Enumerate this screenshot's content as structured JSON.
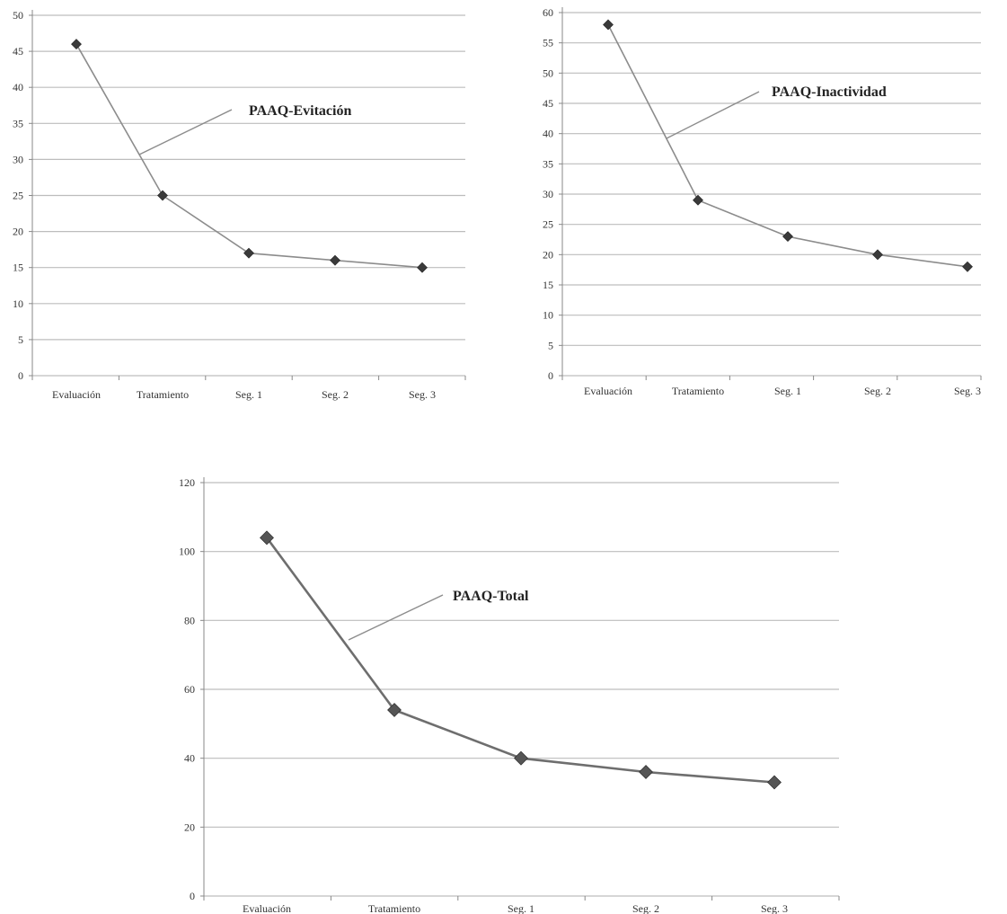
{
  "chart_data": [
    {
      "type": "line",
      "title": "",
      "xlabel": "",
      "ylabel": "",
      "categories": [
        "Evaluación",
        "Tratamiento",
        "Seg. 1",
        "Seg. 2",
        "Seg. 3"
      ],
      "series": [
        {
          "name": "PAAQ-Evitación",
          "values": [
            46,
            25,
            17,
            16,
            15
          ]
        }
      ],
      "ylim": [
        0,
        50
      ],
      "yticks": [
        0,
        5,
        10,
        15,
        20,
        25,
        30,
        35,
        40,
        45,
        50
      ],
      "annotations": [
        {
          "text": "PAAQ-Evitación",
          "series": "PAAQ-Evitación"
        }
      ],
      "grid": true,
      "colors": {
        "line": "#8c8c8c",
        "marker": "#3a3a3a",
        "grid": "#bdbdbd"
      }
    },
    {
      "type": "line",
      "title": "",
      "xlabel": "",
      "ylabel": "",
      "categories": [
        "Evaluación",
        "Tratamiento",
        "Seg. 1",
        "Seg. 2",
        "Seg. 3"
      ],
      "series": [
        {
          "name": "PAAQ-Inactividad",
          "values": [
            58,
            29,
            23,
            20,
            18
          ]
        }
      ],
      "ylim": [
        0,
        60
      ],
      "yticks": [
        0,
        5,
        10,
        15,
        20,
        25,
        30,
        35,
        40,
        45,
        50,
        55,
        60
      ],
      "annotations": [
        {
          "text": "PAAQ-Inactividad",
          "series": "PAAQ-Inactividad"
        }
      ],
      "grid": true,
      "colors": {
        "line": "#8c8c8c",
        "marker": "#3a3a3a",
        "grid": "#bdbdbd"
      }
    },
    {
      "type": "line",
      "title": "",
      "xlabel": "",
      "ylabel": "",
      "categories": [
        "Evaluación",
        "Tratamiento",
        "Seg. 1",
        "Seg. 2",
        "Seg. 3"
      ],
      "series": [
        {
          "name": "PAAQ-Total",
          "values": [
            104,
            54,
            40,
            36,
            33
          ]
        }
      ],
      "ylim": [
        0,
        120
      ],
      "yticks": [
        0,
        20,
        40,
        60,
        80,
        100,
        120
      ],
      "annotations": [
        {
          "text": "PAAQ-Total",
          "series": "PAAQ-Total"
        }
      ],
      "grid": true,
      "colors": {
        "line": "#6e6e6e",
        "marker": "#555555",
        "grid": "#bdbdbd"
      }
    }
  ]
}
